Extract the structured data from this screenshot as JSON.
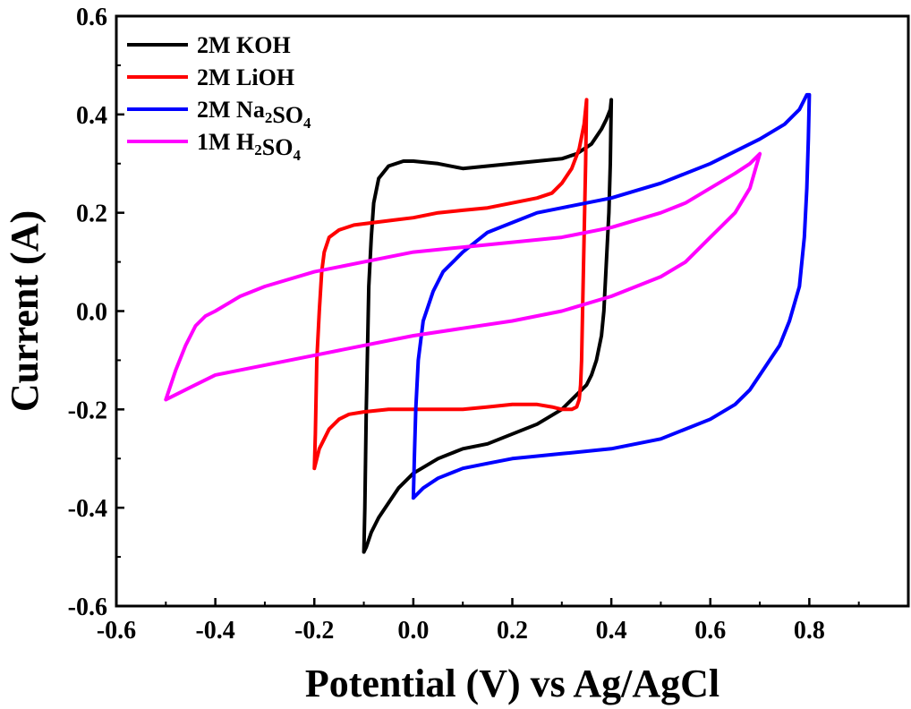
{
  "chart_data": {
    "type": "line",
    "title": "",
    "xlabel": "Potential (V) vs Ag/AgCl",
    "ylabel": "Current (A)",
    "xlim": [
      -0.6,
      1.0
    ],
    "ylim": [
      -0.6,
      0.6
    ],
    "xticks": [
      "-0.6",
      "-0.4",
      "-0.2",
      "0.0",
      "0.2",
      "0.4",
      "0.6",
      "0.8"
    ],
    "yticks": [
      "-0.6",
      "-0.4",
      "-0.2",
      "0.0",
      "0.2",
      "0.4",
      "0.6"
    ],
    "legend_position": "top-left",
    "grid": false,
    "series": [
      {
        "name": "2M KOH",
        "color": "#000000",
        "x": [
          -0.1,
          -0.098,
          -0.095,
          -0.092,
          -0.09,
          -0.085,
          -0.08,
          -0.07,
          -0.05,
          -0.02,
          0.0,
          0.05,
          0.1,
          0.15,
          0.2,
          0.25,
          0.3,
          0.33,
          0.36,
          0.38,
          0.39,
          0.398,
          0.4,
          0.398,
          0.395,
          0.39,
          0.385,
          0.38,
          0.37,
          0.36,
          0.35,
          0.33,
          0.3,
          0.25,
          0.2,
          0.15,
          0.1,
          0.05,
          0.0,
          -0.03,
          -0.05,
          -0.07,
          -0.085,
          -0.095,
          -0.1
        ],
        "y": [
          -0.49,
          -0.4,
          -0.2,
          -0.05,
          0.05,
          0.15,
          0.22,
          0.27,
          0.295,
          0.305,
          0.305,
          0.3,
          0.29,
          0.295,
          0.3,
          0.305,
          0.31,
          0.32,
          0.34,
          0.37,
          0.39,
          0.41,
          0.43,
          0.3,
          0.2,
          0.1,
          0.0,
          -0.05,
          -0.1,
          -0.13,
          -0.15,
          -0.17,
          -0.2,
          -0.23,
          -0.25,
          -0.27,
          -0.28,
          -0.3,
          -0.33,
          -0.36,
          -0.39,
          -0.42,
          -0.45,
          -0.48,
          -0.49
        ]
      },
      {
        "name": "2M LiOH",
        "color": "#ff0000",
        "x": [
          -0.2,
          -0.198,
          -0.195,
          -0.19,
          -0.185,
          -0.18,
          -0.17,
          -0.15,
          -0.12,
          -0.08,
          -0.04,
          0.0,
          0.05,
          0.1,
          0.15,
          0.2,
          0.25,
          0.28,
          0.3,
          0.32,
          0.335,
          0.345,
          0.35,
          0.348,
          0.345,
          0.342,
          0.34,
          0.338,
          0.335,
          0.33,
          0.32,
          0.3,
          0.28,
          0.25,
          0.2,
          0.15,
          0.1,
          0.05,
          0.0,
          -0.05,
          -0.1,
          -0.13,
          -0.15,
          -0.17,
          -0.19,
          -0.2
        ],
        "y": [
          -0.32,
          -0.25,
          -0.1,
          0.0,
          0.08,
          0.12,
          0.15,
          0.165,
          0.175,
          0.18,
          0.185,
          0.19,
          0.2,
          0.205,
          0.21,
          0.22,
          0.23,
          0.24,
          0.26,
          0.29,
          0.33,
          0.38,
          0.43,
          0.3,
          0.15,
          0.0,
          -0.1,
          -0.15,
          -0.18,
          -0.195,
          -0.2,
          -0.2,
          -0.195,
          -0.19,
          -0.19,
          -0.195,
          -0.2,
          -0.2,
          -0.2,
          -0.2,
          -0.205,
          -0.21,
          -0.22,
          -0.24,
          -0.28,
          -0.32
        ]
      },
      {
        "name": "2M Na₂SO₄",
        "color": "#0000ff",
        "x": [
          0.0,
          0.002,
          0.005,
          0.01,
          0.02,
          0.04,
          0.06,
          0.1,
          0.15,
          0.2,
          0.25,
          0.3,
          0.4,
          0.5,
          0.6,
          0.7,
          0.75,
          0.78,
          0.79,
          0.795,
          0.8,
          0.798,
          0.795,
          0.79,
          0.78,
          0.76,
          0.74,
          0.72,
          0.7,
          0.68,
          0.65,
          0.6,
          0.5,
          0.4,
          0.3,
          0.2,
          0.15,
          0.1,
          0.05,
          0.02,
          0.0
        ],
        "y": [
          -0.38,
          -0.3,
          -0.2,
          -0.1,
          -0.02,
          0.04,
          0.08,
          0.12,
          0.16,
          0.18,
          0.2,
          0.21,
          0.23,
          0.26,
          0.3,
          0.35,
          0.38,
          0.41,
          0.43,
          0.44,
          0.44,
          0.35,
          0.25,
          0.15,
          0.05,
          -0.02,
          -0.07,
          -0.1,
          -0.13,
          -0.16,
          -0.19,
          -0.22,
          -0.26,
          -0.28,
          -0.29,
          -0.3,
          -0.31,
          -0.32,
          -0.34,
          -0.36,
          -0.38
        ]
      },
      {
        "name": "1M H₂SO₄",
        "color": "#ff00ff",
        "x": [
          -0.5,
          -0.48,
          -0.46,
          -0.44,
          -0.42,
          -0.4,
          -0.35,
          -0.3,
          -0.2,
          -0.1,
          0.0,
          0.1,
          0.2,
          0.3,
          0.4,
          0.5,
          0.55,
          0.6,
          0.65,
          0.68,
          0.69,
          0.7,
          0.68,
          0.65,
          0.6,
          0.55,
          0.5,
          0.4,
          0.3,
          0.2,
          0.1,
          0.0,
          -0.1,
          -0.2,
          -0.3,
          -0.4,
          -0.45,
          -0.5
        ],
        "y": [
          -0.18,
          -0.12,
          -0.07,
          -0.03,
          -0.01,
          0.0,
          0.03,
          0.05,
          0.08,
          0.1,
          0.12,
          0.13,
          0.14,
          0.15,
          0.17,
          0.2,
          0.22,
          0.25,
          0.28,
          0.3,
          0.31,
          0.32,
          0.25,
          0.2,
          0.15,
          0.1,
          0.07,
          0.03,
          0.0,
          -0.02,
          -0.035,
          -0.05,
          -0.07,
          -0.09,
          -0.11,
          -0.13,
          -0.155,
          -0.18
        ]
      }
    ]
  }
}
